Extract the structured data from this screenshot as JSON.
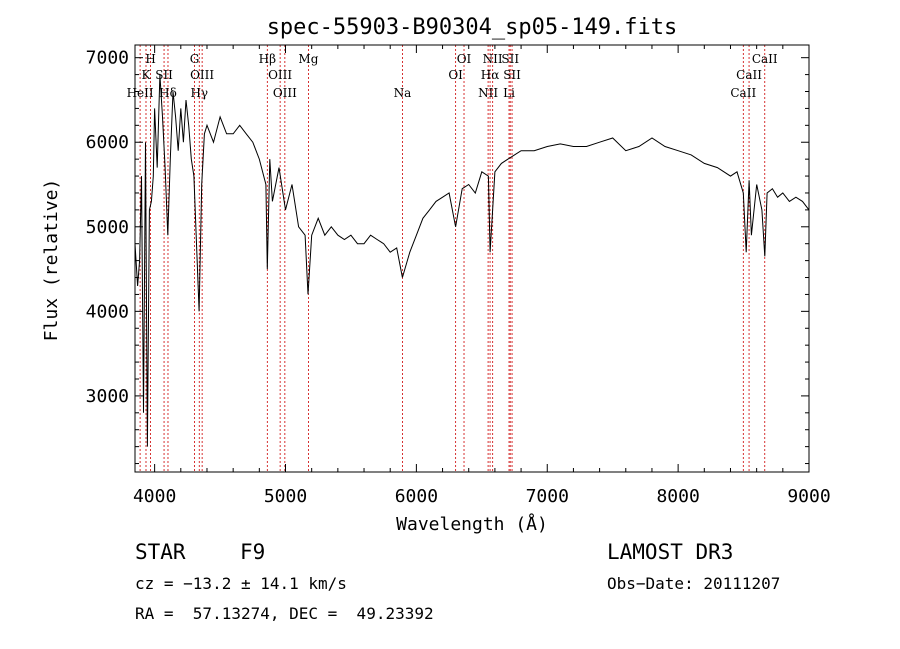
{
  "chart_data": {
    "type": "line",
    "title": "spec-55903-B90304_sp05-149.fits",
    "xlabel": "Wavelength (Å)",
    "ylabel": "Flux (relative)",
    "xlim": [
      3850,
      9000
    ],
    "ylim": [
      2100,
      7150
    ],
    "xticks": [
      4000,
      5000,
      6000,
      7000,
      8000,
      9000
    ],
    "yticks": [
      3000,
      4000,
      5000,
      6000,
      7000
    ],
    "series": [
      {
        "name": "flux",
        "x": [
          3850,
          3870,
          3885,
          3900,
          3915,
          3930,
          3945,
          3960,
          3975,
          3990,
          4000,
          4020,
          4040,
          4060,
          4080,
          4101,
          4120,
          4140,
          4160,
          4180,
          4200,
          4220,
          4240,
          4260,
          4280,
          4300,
          4320,
          4340,
          4360,
          4380,
          4400,
          4450,
          4500,
          4550,
          4600,
          4650,
          4700,
          4750,
          4800,
          4850,
          4861,
          4880,
          4900,
          4950,
          5000,
          5050,
          5100,
          5150,
          5172,
          5200,
          5250,
          5300,
          5350,
          5400,
          5450,
          5500,
          5550,
          5600,
          5650,
          5700,
          5750,
          5800,
          5850,
          5893,
          5950,
          6000,
          6050,
          6100,
          6150,
          6200,
          6250,
          6300,
          6350,
          6400,
          6450,
          6500,
          6550,
          6563,
          6600,
          6650,
          6700,
          6750,
          6800,
          6900,
          7000,
          7100,
          7200,
          7300,
          7400,
          7500,
          7600,
          7700,
          7800,
          7900,
          8000,
          8100,
          8200,
          8300,
          8400,
          8450,
          8498,
          8520,
          8542,
          8560,
          8600,
          8640,
          8662,
          8680,
          8720,
          8760,
          8800,
          8850,
          8900,
          8950,
          9000
        ],
        "values": [
          4800,
          4300,
          4600,
          5600,
          2800,
          6000,
          2400,
          5200,
          5300,
          5600,
          6400,
          5700,
          6800,
          6300,
          5700,
          4900,
          5800,
          6600,
          6300,
          5900,
          6400,
          6000,
          6500,
          6200,
          5800,
          5600,
          4800,
          4000,
          5500,
          6100,
          6200,
          6000,
          6300,
          6100,
          6100,
          6200,
          6100,
          6000,
          5800,
          5500,
          4500,
          5800,
          5300,
          5700,
          5200,
          5500,
          5000,
          4900,
          4200,
          4900,
          5100,
          4900,
          5000,
          4900,
          4850,
          4900,
          4800,
          4800,
          4900,
          4850,
          4800,
          4700,
          4750,
          4400,
          4700,
          4900,
          5100,
          5200,
          5300,
          5350,
          5400,
          5000,
          5450,
          5500,
          5400,
          5650,
          5600,
          4700,
          5650,
          5750,
          5800,
          5850,
          5900,
          5900,
          5950,
          5980,
          5950,
          5950,
          6000,
          6050,
          5900,
          5950,
          6050,
          5950,
          5900,
          5850,
          5750,
          5700,
          5600,
          5650,
          5400,
          4700,
          5550,
          4900,
          5500,
          5200,
          4650,
          5400,
          5450,
          5350,
          5400,
          5300,
          5350,
          5300,
          5200
        ]
      }
    ],
    "emission_lines": [
      {
        "label": "K",
        "x": 3934,
        "row": 2
      },
      {
        "label": "H",
        "x": 3969,
        "row": 1
      },
      {
        "label": "HeII",
        "x": 3889,
        "row": 3
      },
      {
        "label": "SII",
        "x": 4072,
        "row": 2
      },
      {
        "label": "Hδ",
        "x": 4102,
        "row": 3
      },
      {
        "label": "G",
        "x": 4305,
        "row": 1
      },
      {
        "label": "OIII",
        "x": 4363,
        "row": 2
      },
      {
        "label": "Hγ",
        "x": 4341,
        "row": 3
      },
      {
        "label": "Hβ",
        "x": 4861,
        "row": 1
      },
      {
        "label": "OIII",
        "x": 4959,
        "row": 2
      },
      {
        "label": "OIII",
        "x": 4995,
        "row": 3
      },
      {
        "label": "Mg",
        "x": 5175,
        "row": 1
      },
      {
        "label": "Na",
        "x": 5894,
        "row": 3
      },
      {
        "label": "OI",
        "x": 6300,
        "row": 2
      },
      {
        "label": "OI",
        "x": 6364,
        "row": 1
      },
      {
        "label": "NII",
        "x": 6548,
        "row": 3
      },
      {
        "label": "NII",
        "x": 6583,
        "row": 1
      },
      {
        "label": "Hα",
        "x": 6563,
        "row": 2
      },
      {
        "label": "SII",
        "x": 6717,
        "row": 1
      },
      {
        "label": "SII",
        "x": 6731,
        "row": 2
      },
      {
        "label": "Li",
        "x": 6708,
        "row": 3
      },
      {
        "label": "CaII",
        "x": 8498,
        "row": 3
      },
      {
        "label": "CaII",
        "x": 8542,
        "row": 2
      },
      {
        "label": "CaII",
        "x": 8662,
        "row": 1
      }
    ]
  },
  "info": {
    "object_class": "STAR",
    "subclass": "F9",
    "survey": "LAMOST DR3",
    "redshift": "cz = −13.2 ± 14.1 km/s",
    "obs_date": "Obs−Date: 20111207",
    "coords": "RA =  57.13274, DEC =  49.23392"
  },
  "colors": {
    "spectrum": "#000000",
    "line_markers": "#cc0000",
    "axes": "#000000"
  }
}
